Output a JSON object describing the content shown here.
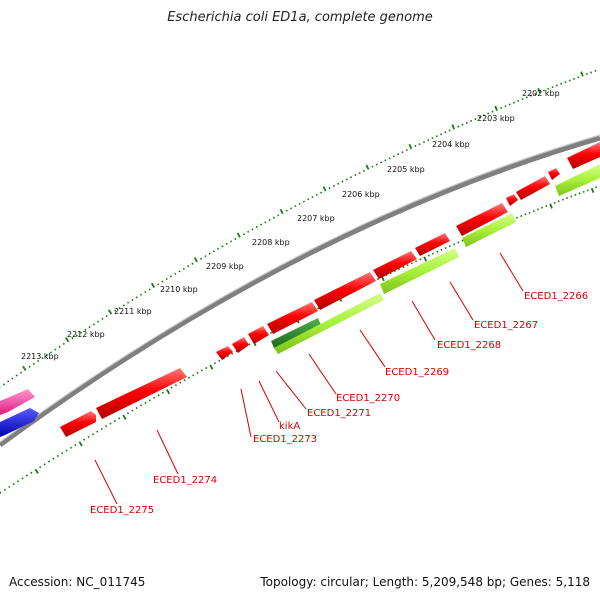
{
  "title": "Escherichia coli ED1a, complete genome",
  "footer": {
    "accession": "Accession: NC_011745",
    "summary": "Topology: circular; Length: 5,209,548 bp; Genes: 5,118"
  },
  "scale_labels": [
    "2202 kbp",
    "2203 kbp",
    "2204 kbp",
    "2205 kbp",
    "2206 kbp",
    "2207 kbp",
    "2208 kbp",
    "2209 kbp",
    "2210 kbp",
    "2211 kbp",
    "2212 kbp",
    "2213 kbp"
  ],
  "gene_labels": [
    "ECED1_2266",
    "ECED1_2267",
    "ECED1_2268",
    "ECED1_2269",
    "ECED1_2270",
    "ECED1_2271",
    "kikA",
    "ECED1_2273",
    "ECED1_2274",
    "ECED1_2275"
  ],
  "colors": {
    "backbone": "#808080",
    "gene_red": "#ff0000",
    "cds_light_green": "#a8f03a",
    "cds_dark_green": "#2a8a2a",
    "gene_pink": "#ff3aa0",
    "gene_blue": "#0000ee",
    "ticks": "#1a7a1a",
    "label_red": "#d40000"
  }
}
